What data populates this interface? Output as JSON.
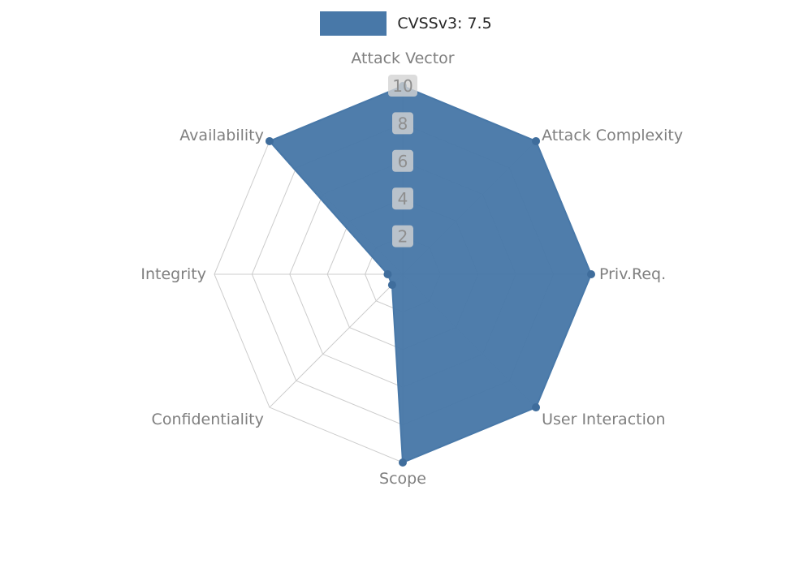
{
  "chart_data": {
    "type": "radar",
    "categories": [
      "Attack Vector",
      "Attack Complexity",
      "Priv.Req.",
      "User Interaction",
      "Scope",
      "Confidentiality",
      "Integrity",
      "Availability"
    ],
    "values": [
      10,
      10,
      10,
      10,
      10,
      0.8,
      0.8,
      10
    ],
    "series": [
      {
        "name": "CVSSv3: 7.5",
        "values": [
          10,
          10,
          10,
          10,
          10,
          0.8,
          0.8,
          10
        ]
      }
    ],
    "scale": {
      "min": 0,
      "max": 10,
      "ticks": [
        2,
        4,
        6,
        8,
        10
      ]
    },
    "grid": true,
    "legend": {
      "label": "CVSSv3: 7.5",
      "position": "top-center"
    },
    "colors": {
      "fill": "#4878a8",
      "stroke": "#4878a8",
      "marker": "#3f6d9c",
      "grid": "#cccccc",
      "axis_label": "#7f7f7f",
      "tick_text": "#8e8e8e",
      "tick_bg": "#d3d3d3",
      "legend_text": "#262626",
      "background": "#ffffff"
    }
  }
}
